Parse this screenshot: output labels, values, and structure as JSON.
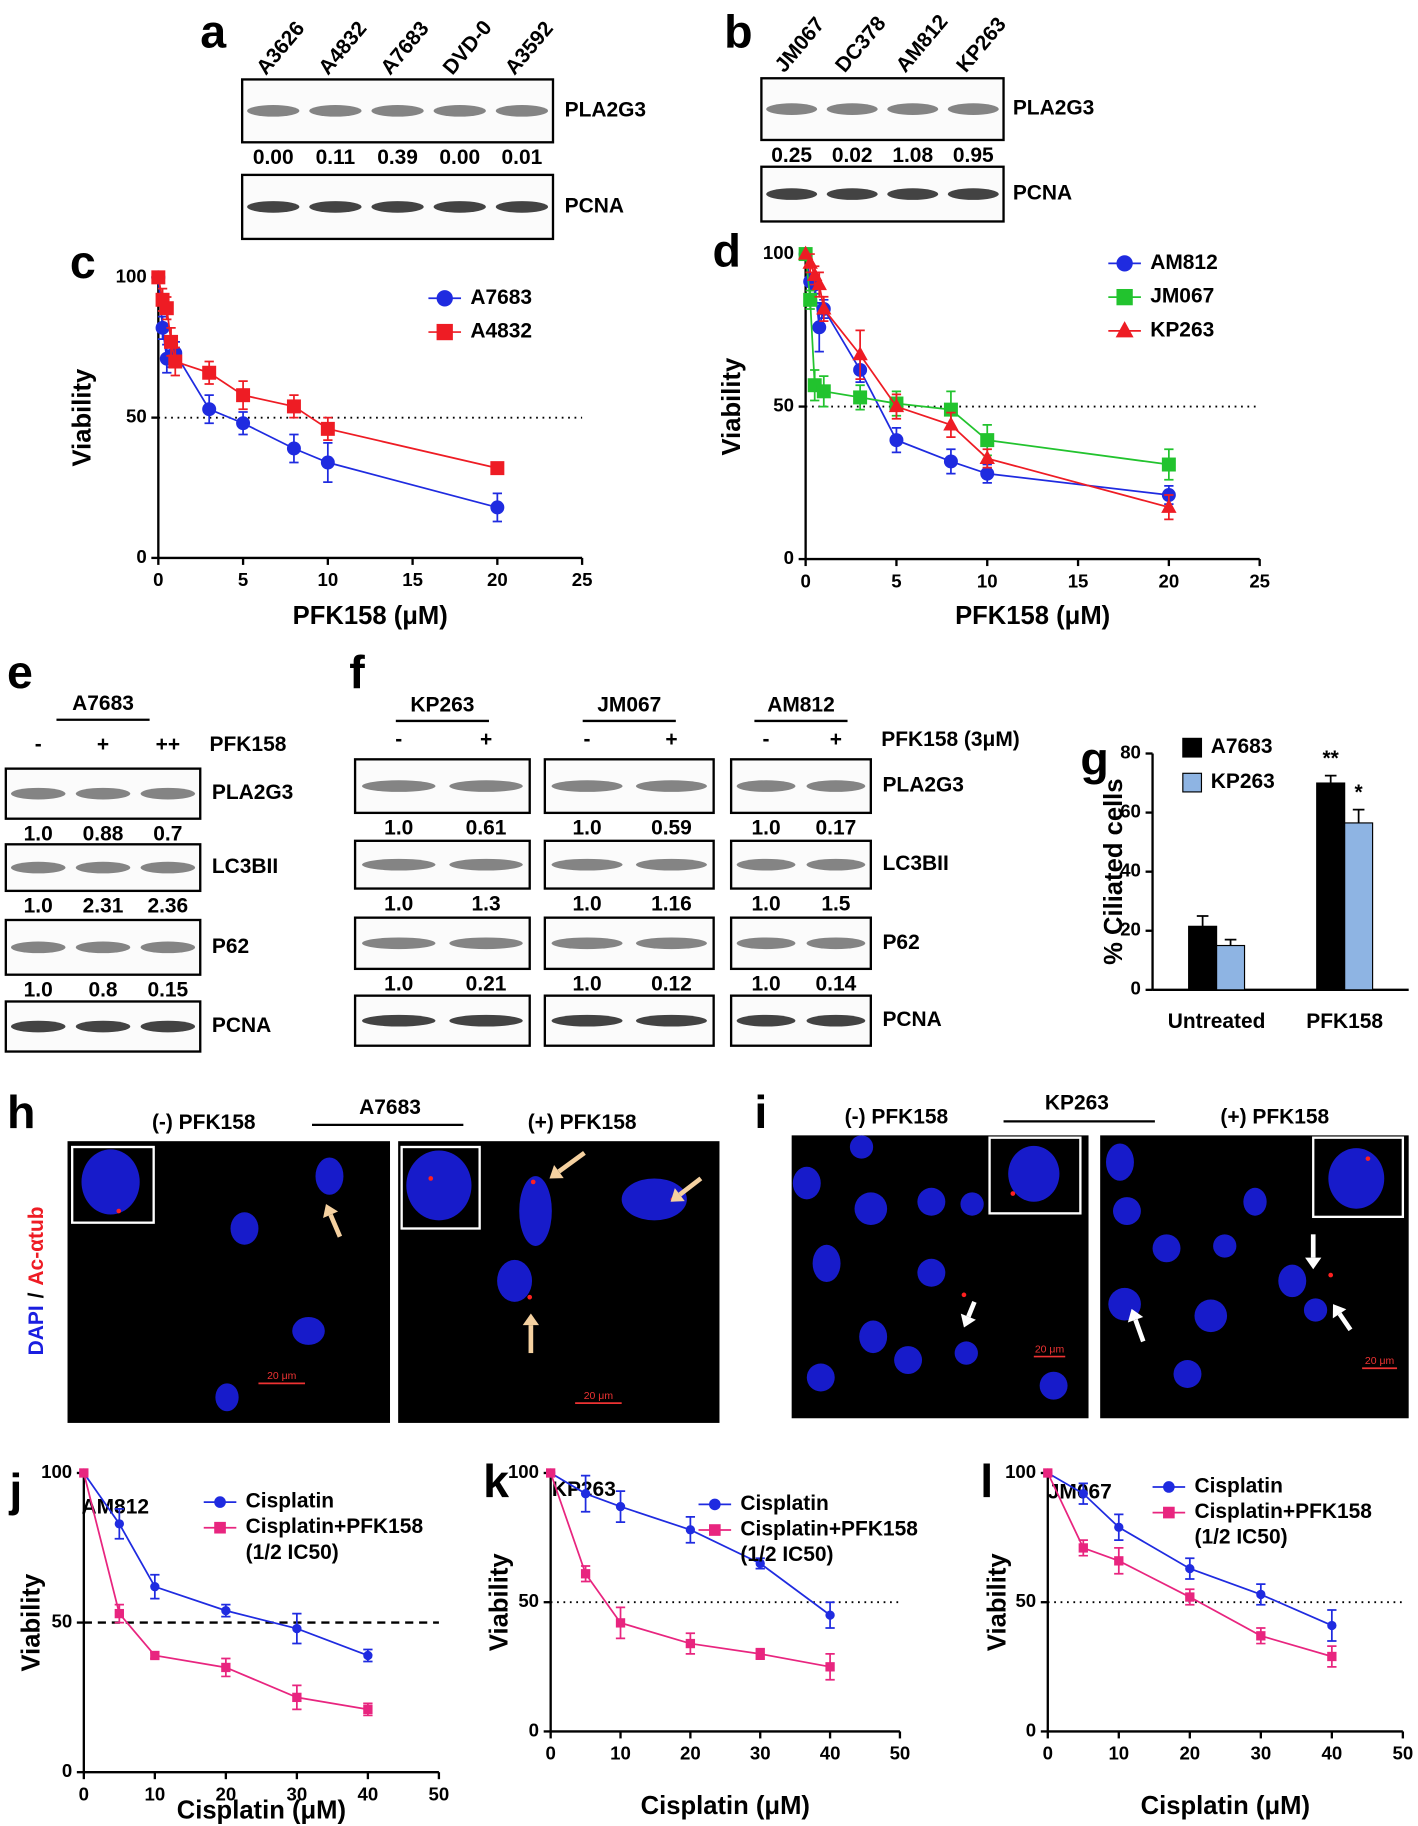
{
  "chart_data": [
    {
      "label": "c",
      "type": "line",
      "xlabel": "PFK158 (μM)",
      "ylabel": "Viability",
      "xlim": [
        0,
        25
      ],
      "xticks": [
        0,
        5,
        10,
        15,
        20,
        25
      ],
      "ylim": [
        0,
        100
      ],
      "yticks": [
        0,
        50,
        100
      ],
      "reference_line": {
        "value": 50,
        "style": "dotted"
      },
      "legend": "upper right",
      "series": [
        {
          "name": "A7683",
          "color": "#1f2be0",
          "marker": "circle",
          "x": [
            0,
            0.25,
            0.5,
            0.75,
            1,
            3,
            5,
            8,
            10,
            20
          ],
          "values": [
            100,
            82,
            71,
            72,
            73,
            53,
            48,
            39,
            34,
            18
          ],
          "errors": [
            0,
            4,
            5,
            4,
            4,
            5,
            4,
            5,
            7,
            5
          ]
        },
        {
          "name": "A4832",
          "color": "#ee1c24",
          "marker": "square",
          "x": [
            0,
            0.25,
            0.5,
            0.75,
            1,
            3,
            5,
            8,
            10,
            20
          ],
          "values": [
            100,
            92,
            89,
            77,
            70,
            66,
            58,
            54,
            46,
            32
          ],
          "errors": [
            0,
            4,
            4,
            5,
            5,
            4,
            5,
            4,
            4,
            1
          ]
        }
      ]
    },
    {
      "label": "d",
      "type": "line",
      "xlabel": "PFK158 (μM)",
      "ylabel": "Viability",
      "xlim": [
        0,
        25
      ],
      "xticks": [
        0,
        5,
        10,
        15,
        20,
        25
      ],
      "ylim": [
        0,
        100
      ],
      "yticks": [
        0,
        50,
        100
      ],
      "reference_line": {
        "value": 50,
        "style": "dotted"
      },
      "legend": "upper right",
      "series": [
        {
          "name": "AM812",
          "color": "#1f2be0",
          "marker": "circle",
          "x": [
            0,
            0.25,
            0.5,
            0.75,
            1,
            3,
            5,
            8,
            10,
            20
          ],
          "values": [
            100,
            91,
            90,
            76,
            82,
            62,
            39,
            32,
            28,
            21
          ],
          "errors": [
            0,
            3,
            3,
            8,
            3,
            4,
            4,
            4,
            3,
            3
          ]
        },
        {
          "name": "JM067",
          "color": "#22c32e",
          "marker": "square",
          "x": [
            0,
            0.25,
            0.5,
            1,
            3,
            5,
            8,
            10,
            20
          ],
          "values": [
            100,
            85,
            57,
            55,
            53,
            51,
            49,
            39,
            31
          ],
          "errors": [
            0,
            3,
            5,
            5,
            4,
            4,
            6,
            5,
            5
          ]
        },
        {
          "name": "KP263",
          "color": "#ee1c24",
          "marker": "triangle",
          "x": [
            0,
            0.25,
            0.5,
            0.75,
            1,
            3,
            5,
            8,
            10,
            20
          ],
          "values": [
            100,
            97,
            93,
            90,
            82,
            67,
            50,
            44,
            33,
            17
          ],
          "errors": [
            0,
            3,
            3,
            4,
            4,
            8,
            4,
            4,
            3,
            4
          ]
        }
      ]
    },
    {
      "label": "g",
      "type": "bar",
      "ylabel": "% Ciliated cells",
      "categories": [
        "Untreated",
        "PFK158"
      ],
      "ylim": [
        0,
        80
      ],
      "yticks": [
        0,
        20,
        40,
        60,
        80
      ],
      "legend": "upper left",
      "series": [
        {
          "name": "A7683",
          "color": "#000000",
          "values": [
            21.5,
            70
          ],
          "errors": [
            3.5,
            2.5
          ]
        },
        {
          "name": "KP263",
          "color": "#8eb4e3",
          "values": [
            15,
            56.5
          ],
          "errors": [
            2,
            4.5
          ]
        }
      ],
      "annotations": [
        {
          "text": "**",
          "series": 0,
          "category": 1
        },
        {
          "text": "*",
          "series": 1,
          "category": 1
        }
      ]
    },
    {
      "label": "j",
      "type": "line",
      "title": "AM812",
      "xlabel": "Cisplatin (μM)",
      "ylabel": "Viability",
      "xlim": [
        0,
        50
      ],
      "xticks": [
        0,
        10,
        20,
        30,
        40,
        50
      ],
      "ylim": [
        0,
        100
      ],
      "yticks": [
        0,
        50,
        100
      ],
      "reference_line": {
        "value": 50,
        "style": "dashed"
      },
      "x": [
        0,
        5,
        10,
        20,
        30,
        40
      ],
      "series": [
        {
          "name": "Cisplatin",
          "color": "#1f2be0",
          "marker": "circle",
          "values": [
            100,
            83,
            62,
            54,
            48,
            39
          ],
          "errors": [
            0,
            5,
            4,
            2,
            5,
            2
          ]
        },
        {
          "name": "Cisplatin+PFK158",
          "name_note": "(1/2 IC50)",
          "color": "#e8257f",
          "marker": "square",
          "values": [
            100,
            53,
            39,
            35,
            25,
            21
          ],
          "errors": [
            0,
            3,
            1,
            3,
            4,
            2
          ]
        }
      ]
    },
    {
      "label": "k",
      "type": "line",
      "title": "KP263",
      "xlabel": "Cisplatin (μM)",
      "ylabel": "Viability",
      "xlim": [
        0,
        50
      ],
      "xticks": [
        0,
        10,
        20,
        30,
        40,
        50
      ],
      "ylim": [
        0,
        100
      ],
      "yticks": [
        0,
        50,
        100
      ],
      "reference_line": {
        "value": 50,
        "style": "dotted"
      },
      "x": [
        0,
        5,
        10,
        20,
        30,
        40
      ],
      "series": [
        {
          "name": "Cisplatin",
          "color": "#1f2be0",
          "marker": "circle",
          "values": [
            100,
            92,
            87,
            78,
            65,
            45
          ],
          "errors": [
            0,
            7,
            6,
            5,
            2,
            5
          ]
        },
        {
          "name": "Cisplatin+PFK158",
          "name_note": "(1/2 IC50)",
          "color": "#e8257f",
          "marker": "square",
          "values": [
            100,
            61,
            42,
            34,
            30,
            25
          ],
          "errors": [
            0,
            3,
            6,
            4,
            2,
            5
          ]
        }
      ]
    },
    {
      "label": "l",
      "type": "line",
      "title": "JM067",
      "xlabel": "Cisplatin (μM)",
      "ylabel": "Viability",
      "xlim": [
        0,
        50
      ],
      "xticks": [
        0,
        10,
        20,
        30,
        40,
        50
      ],
      "ylim": [
        0,
        100
      ],
      "yticks": [
        0,
        50,
        100
      ],
      "reference_line": {
        "value": 50,
        "style": "dotted"
      },
      "x": [
        0,
        5,
        10,
        20,
        30,
        40
      ],
      "series": [
        {
          "name": "Cisplatin",
          "color": "#1f2be0",
          "marker": "circle",
          "values": [
            100,
            92,
            79,
            63,
            53,
            41
          ],
          "errors": [
            0,
            4,
            5,
            4,
            4,
            6
          ]
        },
        {
          "name": "Cisplatin+PFK158",
          "name_note": "(1/2 IC50)",
          "color": "#e8257f",
          "marker": "square",
          "values": [
            100,
            71,
            66,
            52,
            37,
            29
          ],
          "errors": [
            0,
            3,
            5,
            3,
            3,
            4
          ]
        }
      ]
    }
  ],
  "blots": {
    "a": {
      "label": "a",
      "groups": [
        {
          "lanes": [
            "A3626",
            "A4832",
            "A7683",
            "DVD-0",
            "A3592"
          ]
        }
      ],
      "rows": [
        {
          "name": "PLA2G3",
          "quant": [
            [
              "0.00",
              "0.11",
              "0.39",
              "0.00",
              "0.01"
            ]
          ]
        },
        {
          "name": "PCNA"
        }
      ]
    },
    "b": {
      "label": "b",
      "groups": [
        {
          "lanes": [
            "JM067",
            "DC378",
            "AM812",
            "KP263"
          ]
        }
      ],
      "rows": [
        {
          "name": "PLA2G3",
          "quant": [
            [
              "0.25",
              "0.02",
              "1.08",
              "0.95"
            ]
          ]
        },
        {
          "name": "PCNA"
        }
      ]
    },
    "e": {
      "label": "e",
      "treatment": "PFK158",
      "groups": [
        {
          "name": "A7683",
          "lanes": [
            "-",
            "+",
            "++"
          ]
        }
      ],
      "rows": [
        {
          "name": "PLA2G3",
          "quant": [
            [
              "1.0",
              "0.88",
              "0.7"
            ]
          ]
        },
        {
          "name": "LC3BII",
          "quant": [
            [
              "1.0",
              "2.31",
              "2.36"
            ]
          ]
        },
        {
          "name": "P62",
          "quant": [
            [
              "1.0",
              "0.8",
              "0.15"
            ]
          ]
        },
        {
          "name": "PCNA"
        }
      ]
    },
    "f": {
      "label": "f",
      "treatment": "PFK158 (3μM)",
      "groups": [
        {
          "name": "KP263",
          "lanes": [
            "-",
            "+"
          ]
        },
        {
          "name": "JM067",
          "lanes": [
            "-",
            "+"
          ]
        },
        {
          "name": "AM812",
          "lanes": [
            "-",
            "+"
          ]
        }
      ],
      "rows": [
        {
          "name": "PLA2G3",
          "quant": [
            [
              "1.0",
              "0.61"
            ],
            [
              "1.0",
              "0.59"
            ],
            [
              "1.0",
              "0.17"
            ]
          ]
        },
        {
          "name": "LC3BII",
          "quant": [
            [
              "1.0",
              "1.3"
            ],
            [
              "1.0",
              "1.16"
            ],
            [
              "1.0",
              "1.5"
            ]
          ]
        },
        {
          "name": "P62",
          "quant": [
            [
              "1.0",
              "0.21"
            ],
            [
              "1.0",
              "0.12"
            ],
            [
              "1.0",
              "0.14"
            ]
          ]
        },
        {
          "name": "PCNA"
        }
      ]
    }
  },
  "microscopy": {
    "stain": [
      "DAPI",
      "/",
      "Ac-αtub"
    ],
    "h": {
      "label": "h",
      "left": "(-) PFK158",
      "cell_line": "A7683",
      "right": "(+) PFK158",
      "scale_bar": "20 μm"
    },
    "i": {
      "label": "i",
      "left": "(-) PFK158",
      "cell_line": "KP263",
      "right": "(+) PFK158",
      "scale_bar": "20 μm"
    }
  }
}
